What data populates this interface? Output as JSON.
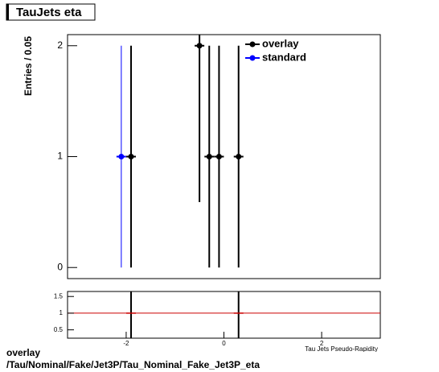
{
  "chart_data": [
    {
      "type": "scatter",
      "title": "TauJets eta",
      "y_label": "Entries / 0.05",
      "xlim": [
        -3.2,
        3.2
      ],
      "ylim": [
        -0.1,
        2.1
      ],
      "yticks": [
        0,
        1,
        2
      ],
      "legend": "top-right",
      "series": [
        {
          "name": "overlay",
          "color": "#000000",
          "x": [
            -1.9,
            -0.5,
            -0.3,
            -0.1,
            0.3
          ],
          "values": [
            1,
            2,
            1,
            1,
            1
          ],
          "errors": [
            1,
            1.41,
            1,
            1,
            1
          ]
        },
        {
          "name": "standard",
          "color": "#0000ff",
          "x": [
            -2.1
          ],
          "values": [
            1
          ],
          "errors": [
            1
          ]
        }
      ]
    },
    {
      "type": "ratio",
      "x_label": "Tau Jets Pseudo-Rapidity",
      "xlim": [
        -3.2,
        3.2
      ],
      "ylim": [
        0.25,
        1.65
      ],
      "xticks": [
        -2,
        0,
        2
      ],
      "yticks": [
        0.5,
        1,
        1.5
      ],
      "reference": 1,
      "reference_color": "#cc0000",
      "series": [
        {
          "color": "#000000",
          "x": [
            -1.9,
            0.3
          ],
          "values": [
            1,
            1
          ],
          "errors": [
            1,
            1
          ]
        }
      ]
    }
  ],
  "footer": {
    "line1": "overlay",
    "line2": "/Tau/Nominal/Fake/Jet3P/Tau_Nominal_Fake_Jet3P_eta"
  }
}
